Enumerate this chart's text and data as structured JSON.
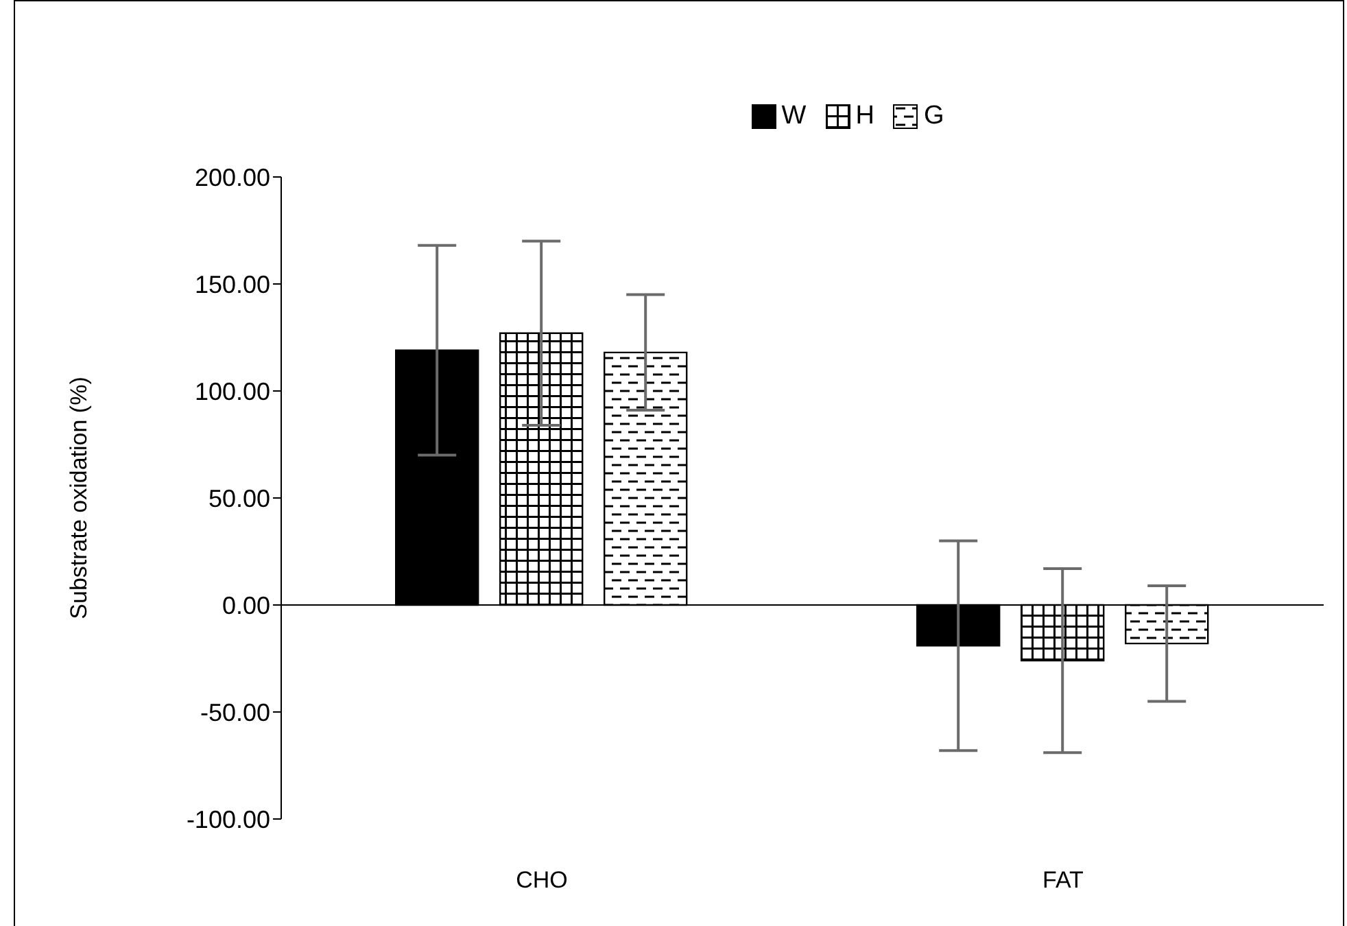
{
  "chart_data": {
    "type": "bar",
    "ylabel": "Substrate oxidation (%)",
    "categories": [
      "CHO",
      "FAT"
    ],
    "series": [
      {
        "name": "W",
        "color": "#000000",
        "values": [
          119,
          -19
        ],
        "errors": [
          49,
          49
        ]
      },
      {
        "name": "H",
        "color": "#000000",
        "values": [
          127,
          -26
        ],
        "errors": [
          43,
          43
        ]
      },
      {
        "name": "G",
        "color": "#000000",
        "values": [
          118,
          -18
        ],
        "errors": [
          27,
          27
        ]
      }
    ],
    "ylim": [
      -100,
      200
    ],
    "yticks": [
      {
        "value": -100,
        "label": "-100.00"
      },
      {
        "value": -50,
        "label": "-50.00"
      },
      {
        "value": 0,
        "label": "0.00"
      },
      {
        "value": 50,
        "label": "50.00"
      },
      {
        "value": 100,
        "label": "100.00"
      },
      {
        "value": 150,
        "label": "150.00"
      },
      {
        "value": 200,
        "label": "200.00"
      }
    ],
    "legend": "top"
  }
}
